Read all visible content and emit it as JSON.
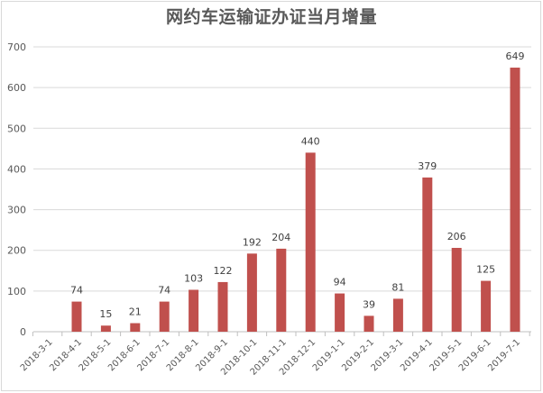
{
  "chart_data": {
    "type": "bar",
    "title": "网约车运输证办证当月增量",
    "xlabel": "",
    "ylabel": "",
    "ylim": [
      0,
      700
    ],
    "yticks": [
      0,
      100,
      200,
      300,
      400,
      500,
      600,
      700
    ],
    "grid": true,
    "legend": null,
    "bar_color": "#c0504d",
    "categories": [
      "2018-3-1",
      "2018-4-1",
      "2018-5-1",
      "2018-6-1",
      "2018-7-1",
      "2018-8-1",
      "2018-9-1",
      "2018-10-1",
      "2018-11-1",
      "2018-12-1",
      "2019-1-1",
      "2019-2-1",
      "2019-3-1",
      "2019-4-1",
      "2019-5-1",
      "2019-6-1",
      "2019-7-1"
    ],
    "values": [
      0,
      74,
      15,
      21,
      74,
      103,
      122,
      192,
      204,
      440,
      94,
      39,
      81,
      379,
      206,
      125,
      649
    ],
    "data_labels": [
      "",
      "74",
      "15",
      "21",
      "74",
      "103",
      "122",
      "192",
      "204",
      "440",
      "94",
      "39",
      "81",
      "379",
      "206",
      "125",
      "649"
    ]
  }
}
